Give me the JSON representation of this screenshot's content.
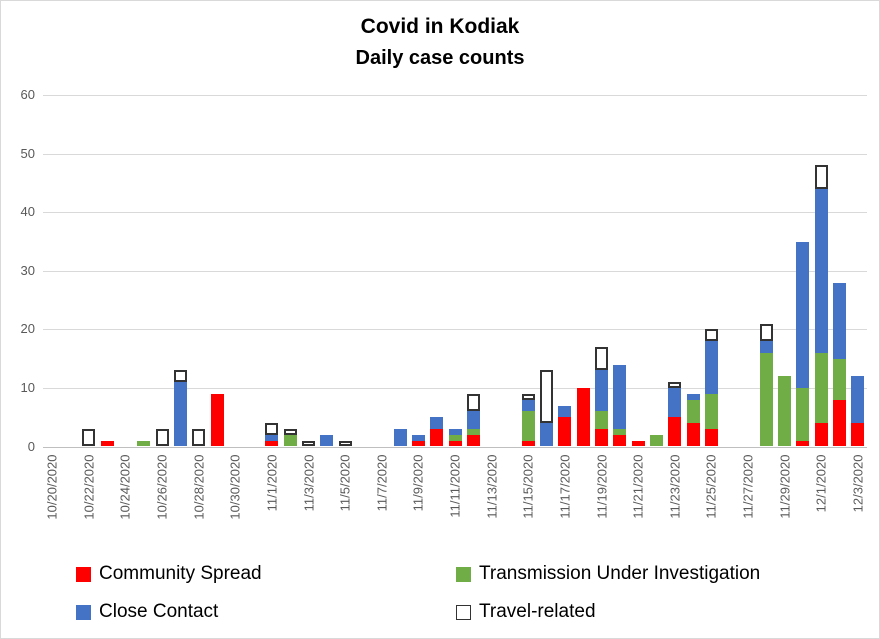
{
  "chart_data": {
    "type": "bar",
    "stacked": true,
    "title": "Covid in Kodiak",
    "subtitle": "Daily case counts",
    "xlabel": "",
    "ylabel": "",
    "ylim": [
      0,
      60
    ],
    "yticks": [
      0,
      10,
      20,
      30,
      40,
      50,
      60
    ],
    "grid": "horizontal",
    "legend_position": "bottom",
    "categories": [
      "10/20/2020",
      "10/21/2020",
      "10/22/2020",
      "10/23/2020",
      "10/24/2020",
      "10/25/2020",
      "10/26/2020",
      "10/27/2020",
      "10/28/2020",
      "10/29/2020",
      "10/30/2020",
      "10/31/2020",
      "11/1/2020",
      "11/2/2020",
      "11/3/2020",
      "11/4/2020",
      "11/5/2020",
      "11/6/2020",
      "11/7/2020",
      "11/8/2020",
      "11/9/2020",
      "11/10/2020",
      "11/11/2020",
      "11/12/2020",
      "11/13/2020",
      "11/14/2020",
      "11/15/2020",
      "11/16/2020",
      "11/17/2020",
      "11/18/2020",
      "11/19/2020",
      "11/20/2020",
      "11/21/2020",
      "11/22/2020",
      "11/23/2020",
      "11/24/2020",
      "11/25/2020",
      "11/26/2020",
      "11/27/2020",
      "11/28/2020",
      "11/29/2020",
      "11/30/2020",
      "12/1/2020",
      "12/2/2020",
      "12/3/2020"
    ],
    "labeled_tick_step": 2,
    "series": [
      {
        "name": "Community Spread",
        "color": "#FF0000",
        "outlined": false,
        "values": [
          0,
          0,
          0,
          1,
          0,
          0,
          0,
          0,
          0,
          9,
          0,
          0,
          1,
          0,
          0,
          0,
          0,
          0,
          0,
          0,
          1,
          3,
          1,
          2,
          0,
          0,
          1,
          0,
          5,
          10,
          3,
          2,
          1,
          0,
          5,
          4,
          3,
          0,
          0,
          0,
          0,
          1,
          4,
          8,
          4
        ]
      },
      {
        "name": "Transmission Under Investigation",
        "color": "#70AD47",
        "outlined": false,
        "values": [
          0,
          0,
          0,
          0,
          0,
          1,
          0,
          0,
          0,
          0,
          0,
          0,
          0,
          2,
          0,
          0,
          0,
          0,
          0,
          0,
          0,
          0,
          1,
          1,
          0,
          0,
          5,
          0,
          0,
          0,
          3,
          1,
          0,
          2,
          0,
          4,
          6,
          0,
          0,
          16,
          12,
          9,
          12,
          7,
          0
        ]
      },
      {
        "name": "Close Contact",
        "color": "#4472C4",
        "outlined": false,
        "values": [
          0,
          0,
          0,
          0,
          0,
          0,
          0,
          11,
          0,
          0,
          0,
          0,
          1,
          0,
          0,
          2,
          0,
          0,
          0,
          3,
          1,
          2,
          1,
          3,
          0,
          0,
          2,
          4,
          2,
          0,
          7,
          11,
          0,
          0,
          5,
          1,
          9,
          0,
          0,
          2,
          0,
          25,
          28,
          13,
          8
        ]
      },
      {
        "name": "Travel-related",
        "color": "#FFFFFF",
        "outlined": true,
        "values": [
          0,
          0,
          3,
          0,
          0,
          0,
          3,
          2,
          3,
          0,
          0,
          0,
          2,
          1,
          1,
          0,
          1,
          0,
          0,
          0,
          0,
          0,
          0,
          3,
          0,
          0,
          1,
          9,
          0,
          0,
          4,
          0,
          0,
          0,
          1,
          0,
          2,
          0,
          0,
          3,
          0,
          0,
          4,
          0,
          0
        ]
      }
    ],
    "colors": {
      "grid": "#D9D9D9",
      "axis_line": "#BFBFBF",
      "axis_labels": "#595959",
      "title_text": "#000000",
      "travel_outline": "#333333"
    }
  },
  "legend": {
    "items": [
      {
        "label": "Community Spread"
      },
      {
        "label": "Transmission Under Investigation"
      },
      {
        "label": "Close Contact"
      },
      {
        "label": "Travel-related"
      }
    ]
  }
}
